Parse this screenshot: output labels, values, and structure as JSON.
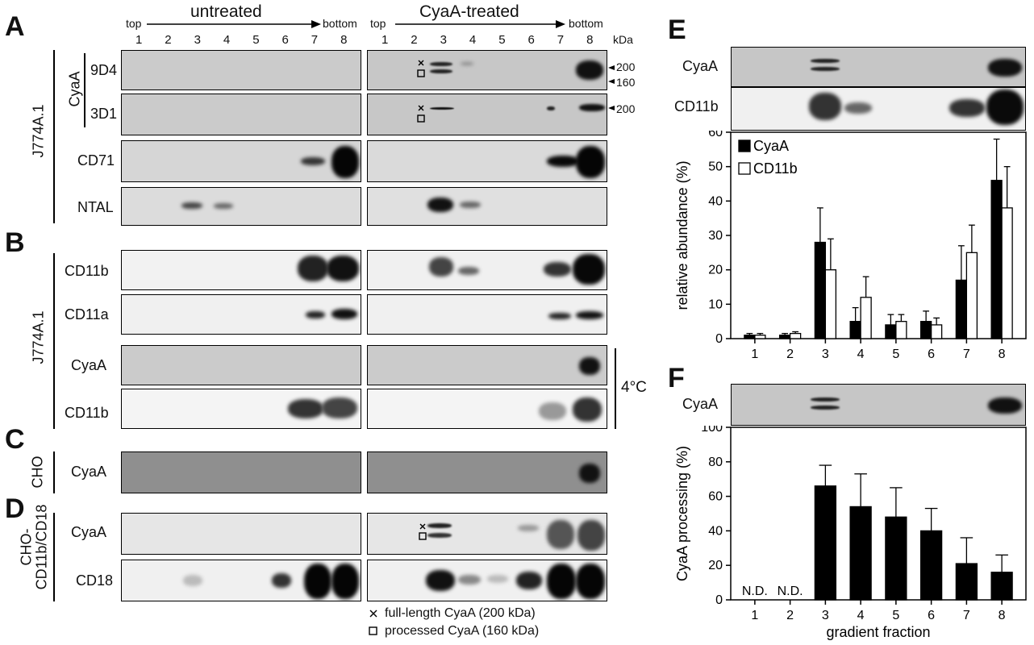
{
  "panels": {
    "A": "A",
    "B": "B",
    "C": "C",
    "D": "D",
    "E": "E",
    "F": "F"
  },
  "header": {
    "untreated": "untreated",
    "treated": "CyaA-treated",
    "top": "top",
    "bottom": "bottom",
    "kda": "kDa",
    "lanes": [
      "1",
      "2",
      "3",
      "4",
      "5",
      "6",
      "7",
      "8"
    ]
  },
  "left_labels": {
    "j774_a": "J774A.1",
    "cyaa": "CyaA",
    "ab_9d4": "9D4",
    "ab_3d1": "3D1",
    "cd71": "CD71",
    "ntal": "NTAL",
    "j774_b": "J774A.1",
    "cd11b": "CD11b",
    "cd11a": "CD11a",
    "cyaa_b": "CyaA",
    "cd11b_b": "CD11b",
    "temp": "4°C",
    "cho": "CHO",
    "cyaa_c": "CyaA",
    "cho_cd": "CHO-",
    "cho_cd2": "CD11b/CD18",
    "cyaa_d": "CyaA",
    "cd18": "CD18"
  },
  "markers": {
    "m200": "200",
    "m160": "160",
    "m200b": "200"
  },
  "legend": {
    "full": "full-length CyaA (200 kDa)",
    "processed": "processed CyaA (160 kDa)",
    "x": "×"
  },
  "panel_e": {
    "blot_cyaa": "CyaA",
    "blot_cd11b": "CD11b"
  },
  "panel_f": {
    "blot_cyaa": "CyaA"
  },
  "colors": {
    "black_bar": "#000000",
    "white_bar": "#ffffff",
    "blot_gray": "#c9c9c9"
  },
  "chart_data": [
    {
      "type": "bar",
      "panel": "E",
      "categories": [
        "1",
        "2",
        "3",
        "4",
        "5",
        "6",
        "7",
        "8"
      ],
      "series": [
        {
          "name": "CyaA",
          "values": [
            1,
            1,
            28,
            5,
            4,
            5,
            17,
            46
          ],
          "errors": [
            0.5,
            0.5,
            10,
            4,
            3,
            3,
            10,
            12
          ]
        },
        {
          "name": "CD11b",
          "values": [
            1,
            1.5,
            20,
            12,
            5,
            4,
            25,
            38
          ],
          "errors": [
            0.5,
            0.5,
            9,
            6,
            2,
            2,
            8,
            12
          ]
        }
      ],
      "ylabel": "relative abundance (%)",
      "xlabel": "",
      "ylim": [
        0,
        60
      ],
      "yticks": [
        0,
        10,
        20,
        30,
        40,
        50,
        60
      ],
      "legend": "top-left"
    },
    {
      "type": "bar",
      "panel": "F",
      "categories": [
        "1",
        "2",
        "3",
        "4",
        "5",
        "6",
        "7",
        "8"
      ],
      "series": [
        {
          "name": "",
          "values": [
            null,
            null,
            66,
            54,
            48,
            40,
            21,
            16
          ],
          "errors": [
            0,
            0,
            12,
            19,
            17,
            13,
            15,
            10
          ]
        }
      ],
      "na_labels": [
        "N.D.",
        "N.D."
      ],
      "ylabel": "CyaA processing (%)",
      "xlabel": "gradient fraction",
      "ylim": [
        0,
        100
      ],
      "yticks": [
        0,
        20,
        40,
        60,
        80,
        100
      ]
    }
  ]
}
